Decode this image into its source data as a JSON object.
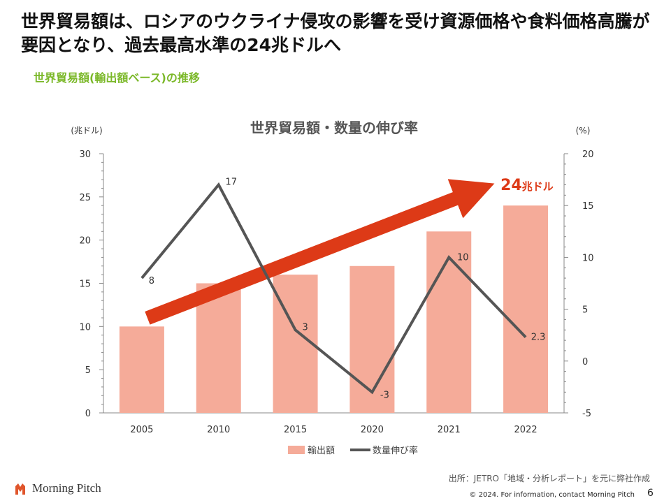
{
  "page": {
    "headline": "世界貿易額は、ロシアのウクライナ侵攻の影響を受け資源価格や食料価格高騰が要因となり、過去最高水準の24兆ドルへ",
    "subheading": "世界貿易額(輸出額ベース)の推移",
    "source_note": "出所：JETRO「地域・分析レポート」を元に弊社作成",
    "logo_text": "Morning Pitch",
    "footer": "© 2024. For information, contact Morning Pitch",
    "page_number": "6"
  },
  "colors": {
    "bar": "#f5ab99",
    "line": "#555555",
    "arrow": "#dd3a17",
    "subhead": "#7bb829",
    "axis": "#888888",
    "logo": "#e0552b"
  },
  "chart_data": {
    "type": "bar",
    "title": "世界貿易額・数量の伸び率",
    "categories": [
      "2005",
      "2010",
      "2015",
      "2020",
      "2021",
      "2022"
    ],
    "left_axis": {
      "unit_label": "(兆ドル)",
      "range": [
        0,
        30
      ],
      "ticks": [
        0,
        5,
        10,
        15,
        20,
        25,
        30
      ]
    },
    "right_axis": {
      "unit_label": "(%)",
      "range": [
        -5,
        20
      ],
      "ticks": [
        -5,
        0,
        5,
        10,
        15,
        20
      ]
    },
    "series": [
      {
        "name": "輸出額",
        "type": "bar",
        "axis": "left",
        "values": [
          10,
          15,
          16,
          17,
          21,
          24
        ]
      },
      {
        "name": "数量伸び率",
        "type": "line",
        "axis": "right",
        "values": [
          8,
          17,
          3,
          -3,
          10,
          2.3
        ],
        "data_labels": [
          "8",
          "17",
          "3",
          "-3",
          "10",
          "2.3"
        ]
      }
    ],
    "annotation": {
      "text_number": "24",
      "text_unit": "兆ドル"
    },
    "legend_position": "bottom",
    "grid": false
  }
}
